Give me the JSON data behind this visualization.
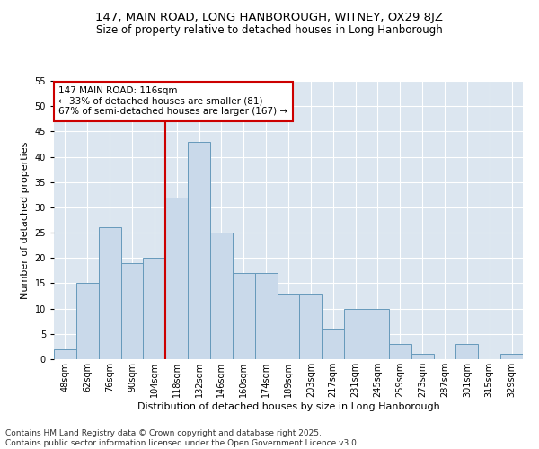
{
  "title": "147, MAIN ROAD, LONG HANBOROUGH, WITNEY, OX29 8JZ",
  "subtitle": "Size of property relative to detached houses in Long Hanborough",
  "xlabel": "Distribution of detached houses by size in Long Hanborough",
  "ylabel": "Number of detached properties",
  "bar_labels": [
    "48sqm",
    "62sqm",
    "76sqm",
    "90sqm",
    "104sqm",
    "118sqm",
    "132sqm",
    "146sqm",
    "160sqm",
    "174sqm",
    "189sqm",
    "203sqm",
    "217sqm",
    "231sqm",
    "245sqm",
    "259sqm",
    "273sqm",
    "287sqm",
    "301sqm",
    "315sqm",
    "329sqm"
  ],
  "bar_values": [
    2,
    15,
    26,
    19,
    20,
    32,
    43,
    25,
    17,
    17,
    13,
    13,
    6,
    10,
    10,
    3,
    1,
    0,
    3,
    0,
    1
  ],
  "bar_color": "#c9d9ea",
  "bar_edgecolor": "#6699bb",
  "vline_color": "#cc0000",
  "vline_index": 5,
  "annotation_line1": "147 MAIN ROAD: 116sqm",
  "annotation_line2": "← 33% of detached houses are smaller (81)",
  "annotation_line3": "67% of semi-detached houses are larger (167) →",
  "annotation_box_edgecolor": "#cc0000",
  "ylim": [
    0,
    55
  ],
  "yticks": [
    0,
    5,
    10,
    15,
    20,
    25,
    30,
    35,
    40,
    45,
    50,
    55
  ],
  "background_color": "#dce6f0",
  "grid_color": "#ffffff",
  "footer_line1": "Contains HM Land Registry data © Crown copyright and database right 2025.",
  "footer_line2": "Contains public sector information licensed under the Open Government Licence v3.0.",
  "title_fontsize": 9.5,
  "subtitle_fontsize": 8.5,
  "axis_label_fontsize": 8,
  "tick_fontsize": 7,
  "annotation_fontsize": 7.5,
  "footer_fontsize": 6.5
}
